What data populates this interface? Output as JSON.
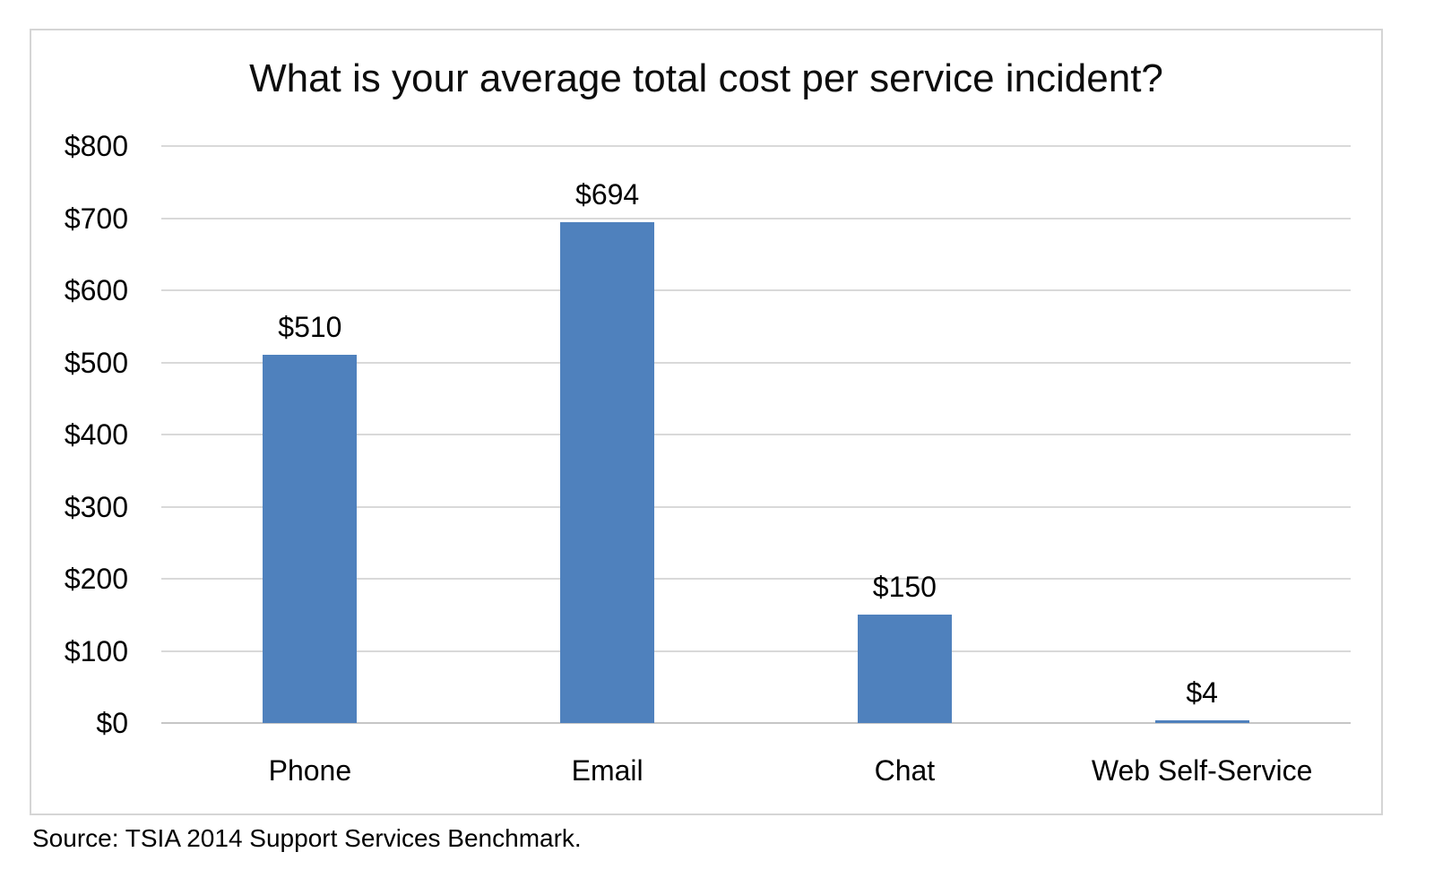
{
  "title": "What is your average total cost per service incident?",
  "source": "Source: TSIA 2014 Support Services Benchmark.",
  "chart_data": {
    "type": "bar",
    "title": "What is your average total cost per service incident?",
    "categories": [
      "Phone",
      "Email",
      "Chat",
      "Web Self-Service"
    ],
    "values": [
      510,
      694,
      150,
      4
    ],
    "value_labels": [
      "$510",
      "$694",
      "$150",
      "$4"
    ],
    "y_ticks": [
      0,
      100,
      200,
      300,
      400,
      500,
      600,
      700,
      800
    ],
    "y_tick_labels": [
      "$0",
      "$100",
      "$200",
      "$300",
      "$400",
      "$500",
      "$600",
      "$700",
      "$800"
    ],
    "ylim": [
      0,
      800
    ],
    "xlabel": "",
    "ylabel": "",
    "grid": true,
    "legend_position": "none",
    "bar_color": "#4F81BD",
    "gridline_color": "#d9d9d9",
    "axis_line_color": "#c6c6c6",
    "frame_border_color": "#d5d5d5"
  }
}
